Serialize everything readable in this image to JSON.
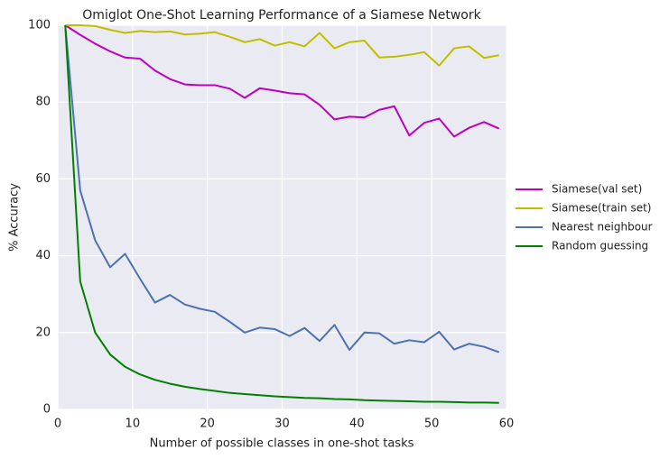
{
  "chart_data": {
    "type": "line",
    "title": "Omiglot One-Shot Learning Performance of a Siamese Network",
    "x_label": "Number of possible classes in one-shot tasks",
    "y_label": "% Accuracy",
    "x": [
      1,
      3,
      5,
      7,
      9,
      11,
      13,
      15,
      17,
      19,
      21,
      23,
      25,
      27,
      29,
      31,
      33,
      35,
      37,
      39,
      41,
      43,
      45,
      47,
      49,
      51,
      53,
      55,
      57,
      59
    ],
    "series": [
      {
        "name": "Siamese(val set)",
        "color": "#bf00bf",
        "values": [
          100,
          97.5,
          95.2,
          93.2,
          91.6,
          91.3,
          88.2,
          86,
          84.6,
          84.4,
          84.4,
          83.5,
          81.1,
          83.6,
          83,
          82.3,
          82,
          79.3,
          75.5,
          76.2,
          76,
          78,
          78.9,
          71.3,
          74.6,
          75.7,
          71,
          73.3,
          74.8,
          73.1
        ]
      },
      {
        "name": "Siamese(train set)",
        "color": "#bfbf00",
        "values": [
          100,
          100,
          99.8,
          98.8,
          98,
          98.5,
          98.2,
          98.4,
          97.6,
          97.8,
          98.2,
          97,
          95.6,
          96.4,
          94.7,
          95.6,
          94.5,
          98,
          94,
          95.6,
          96,
          91.6,
          91.8,
          92.3,
          93,
          89.5,
          94,
          94.5,
          91.5,
          92.2
        ]
      },
      {
        "name": "Nearest neighbour",
        "color": "#4c72b0",
        "values": [
          100,
          57,
          44,
          37,
          40.5,
          34,
          27.8,
          29.8,
          27.3,
          26.2,
          25.4,
          22.8,
          20,
          21.3,
          20.9,
          19.1,
          21.2,
          17.8,
          22,
          15.5,
          20,
          19.8,
          17.1,
          18,
          17.5,
          20.2,
          15.6,
          17.1,
          16.3,
          14.9
        ]
      },
      {
        "name": "Random guessing",
        "color": "#008000",
        "values": [
          100,
          33.3,
          20,
          14.3,
          11.1,
          9.1,
          7.7,
          6.7,
          5.9,
          5.3,
          4.8,
          4.3,
          4,
          3.7,
          3.4,
          3.2,
          3,
          2.9,
          2.7,
          2.6,
          2.4,
          2.3,
          2.2,
          2.1,
          2,
          2,
          1.9,
          1.8,
          1.8,
          1.7
        ]
      }
    ],
    "xlim": [
      0,
      60
    ],
    "xticks": [
      0,
      10,
      20,
      30,
      40,
      50,
      60
    ],
    "ylim": [
      0,
      100
    ],
    "yticks": [
      0,
      20,
      40,
      60,
      80,
      100
    ],
    "grid": true,
    "legend": "right"
  }
}
